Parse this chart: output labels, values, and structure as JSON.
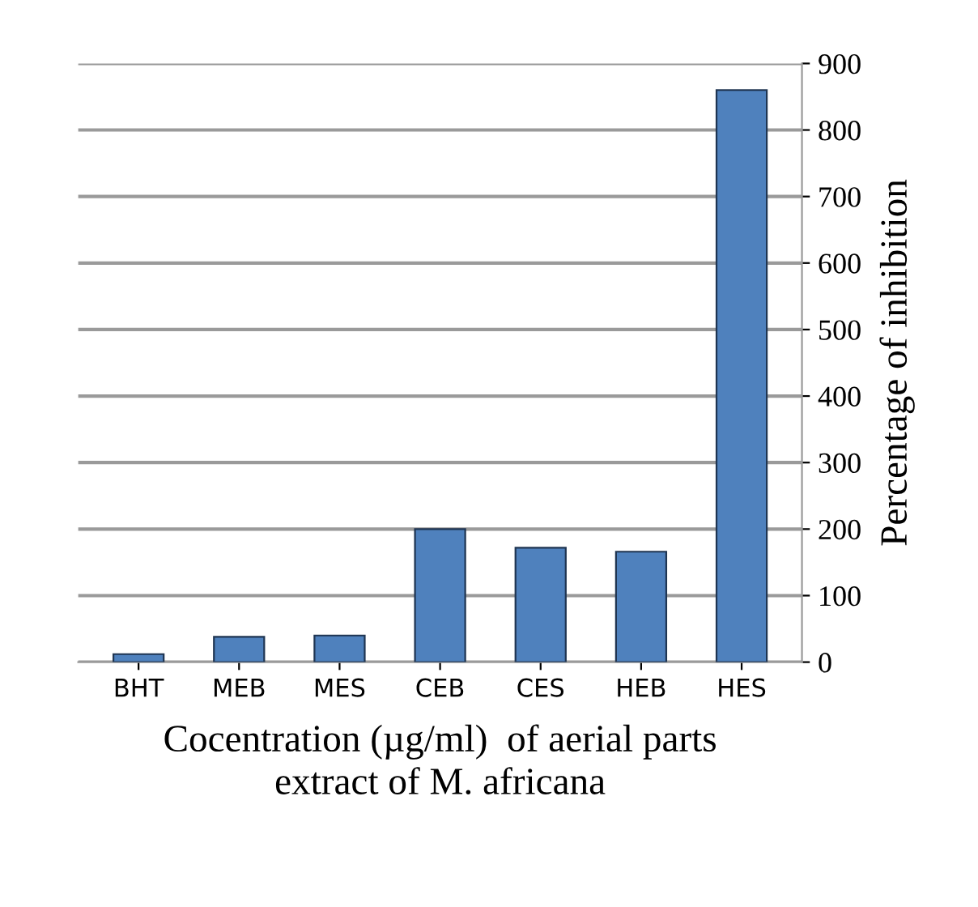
{
  "chart_data": {
    "type": "bar",
    "xlabel": "Cocentration (µg/ml)  of aerial parts\nextract of M. africana",
    "ylabel": "Percentage of inhibition",
    "categories": [
      "BHT",
      "MEB",
      "MES",
      "CEB",
      "CES",
      "HEB",
      "HES"
    ],
    "values": [
      12,
      38,
      40,
      200,
      172,
      166,
      860
    ],
    "color": "#4f81bd",
    "ylim": [
      0,
      900
    ],
    "yticks": [
      0,
      100,
      200,
      300,
      400,
      500,
      600,
      700,
      800,
      900
    ],
    "grid": "y"
  }
}
